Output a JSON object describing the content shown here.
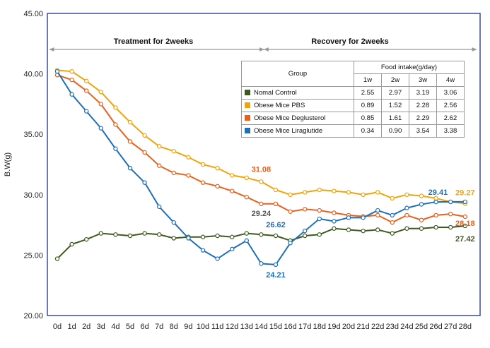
{
  "chart_data": {
    "type": "line",
    "ylabel": "B.W(g)",
    "ylim": [
      20,
      45
    ],
    "yticks": [
      "20.00",
      "25.00",
      "30.00",
      "35.00",
      "40.00",
      "45.00"
    ],
    "categories": [
      "0d",
      "1d",
      "2d",
      "3d",
      "4d",
      "5d",
      "6d",
      "7d",
      "8d",
      "9d",
      "10d",
      "11d",
      "12d",
      "13d",
      "14d",
      "15d",
      "16d",
      "17d",
      "18d",
      "19d",
      "20d",
      "21d",
      "22d",
      "23d",
      "24d",
      "25d",
      "26d",
      "27d",
      "28d"
    ],
    "phases": [
      {
        "label": "Treatment for 2weeks",
        "from": 0,
        "to": 14
      },
      {
        "label": "Recovery for 2weeks",
        "from": 14,
        "to": 28
      }
    ],
    "series": [
      {
        "name": "Nomal Control",
        "color": "#3d5a1e",
        "values": [
          24.7,
          25.9,
          26.3,
          26.8,
          26.7,
          26.6,
          26.8,
          26.7,
          26.4,
          26.5,
          26.5,
          26.6,
          26.5,
          26.8,
          26.7,
          26.6,
          26.2,
          26.6,
          26.7,
          27.2,
          27.1,
          27.0,
          27.1,
          26.8,
          27.2,
          27.2,
          27.3,
          27.3,
          27.42
        ]
      },
      {
        "name": "Obese Mice PBS",
        "color": "#f0a30a",
        "values": [
          40.3,
          40.2,
          39.4,
          38.5,
          37.2,
          36.0,
          34.9,
          34.0,
          33.6,
          33.1,
          32.5,
          32.2,
          31.6,
          31.4,
          31.08,
          30.4,
          30.0,
          30.2,
          30.4,
          30.3,
          30.2,
          30.0,
          30.2,
          29.7,
          30.0,
          29.9,
          29.7,
          29.4,
          29.27
        ]
      },
      {
        "name": "Obese Mice Deglusterol",
        "color": "#e8601c",
        "values": [
          39.9,
          39.5,
          38.6,
          37.5,
          35.8,
          34.4,
          33.5,
          32.4,
          31.8,
          31.6,
          31.0,
          30.7,
          30.3,
          29.8,
          29.24,
          29.24,
          28.6,
          28.8,
          28.7,
          28.5,
          28.3,
          28.2,
          28.3,
          27.7,
          28.3,
          27.9,
          28.3,
          28.4,
          28.18
        ]
      },
      {
        "name": "Obese Mice Liraglutide",
        "color": "#1f6fb8",
        "values": [
          40.2,
          38.3,
          36.9,
          35.5,
          33.8,
          32.2,
          31.0,
          29.0,
          27.7,
          26.4,
          25.4,
          24.7,
          25.5,
          26.2,
          24.3,
          24.21,
          26.0,
          27.0,
          28.0,
          27.8,
          28.1,
          28.1,
          28.7,
          28.3,
          28.9,
          29.2,
          29.4,
          29.41,
          29.41
        ]
      }
    ],
    "annotations": [
      {
        "text": "31.08",
        "series": 1,
        "index": 14,
        "color": "#e8601c"
      },
      {
        "text": "29.24",
        "series": 2,
        "index": 14,
        "color": "#555555"
      },
      {
        "text": "26.62",
        "series": 0,
        "index": 15,
        "color": "#1f6fb8"
      },
      {
        "text": "24.21",
        "series": 3,
        "index": 15,
        "color": "#1f6fb8"
      },
      {
        "text": "29.41",
        "series": 3,
        "index": 27,
        "color": "#1f6fb8"
      },
      {
        "text": "29.27",
        "series": 1,
        "index": 28,
        "color": "#f0a30a"
      },
      {
        "text": "28.18",
        "series": 2,
        "index": 28,
        "color": "#e8601c"
      },
      {
        "text": "27.42",
        "series": 0,
        "index": 28,
        "color": "#3d5a1e"
      }
    ],
    "table": {
      "group_header": "Group",
      "intake_header": "Food intake(g/day)",
      "weeks": [
        "1w",
        "2w",
        "3w",
        "4w"
      ],
      "rows": [
        {
          "name": "Nomal Control",
          "color": "#3d5a1e",
          "values": [
            "2.55",
            "2.97",
            "3.19",
            "3.06"
          ]
        },
        {
          "name": "Obese Mice PBS",
          "color": "#f0a30a",
          "values": [
            "0.89",
            "1.52",
            "2.28",
            "2.56"
          ]
        },
        {
          "name": "Obese Mice Deglusterol",
          "color": "#e8601c",
          "values": [
            "0.85",
            "1.61",
            "2.29",
            "2.62"
          ]
        },
        {
          "name": "Obese Mice Liraglutide",
          "color": "#1f6fb8",
          "values": [
            "0.34",
            "0.90",
            "3.54",
            "3.38"
          ]
        }
      ]
    }
  }
}
